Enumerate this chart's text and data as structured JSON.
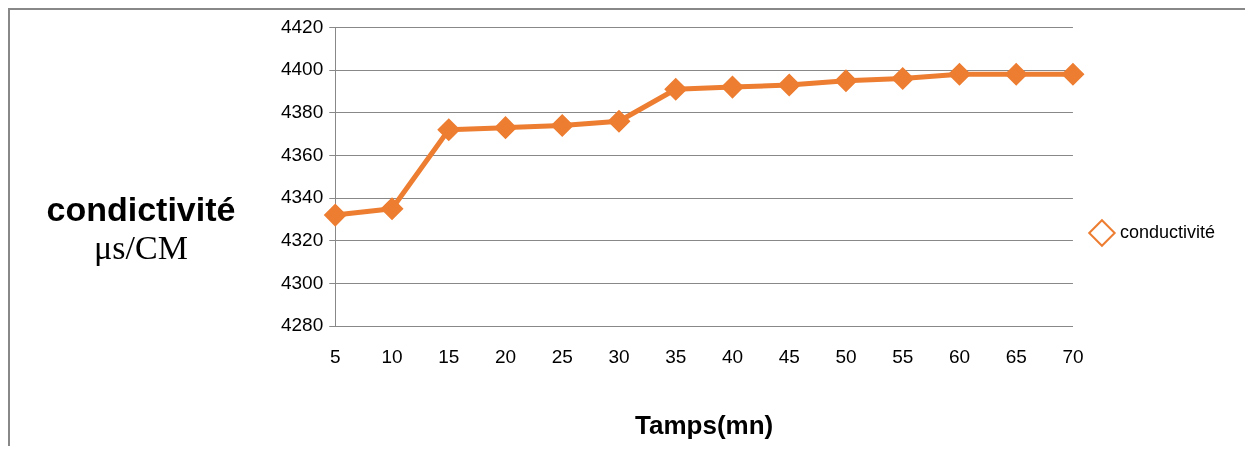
{
  "chart_data": {
    "type": "line",
    "xlabel": "Tamps(mn)",
    "ylabel": "condictivité\nμs/CM",
    "categories": [
      "5",
      "10",
      "15",
      "20",
      "25",
      "30",
      "35",
      "40",
      "45",
      "50",
      "55",
      "60",
      "65",
      "70"
    ],
    "series": [
      {
        "name": "conductivité",
        "color": "#ed7d31",
        "values": [
          4332,
          4335,
          4372,
          4373,
          4374,
          4376,
          4391,
          4392,
          4393,
          4395,
          4396,
          4398,
          4398,
          4398
        ]
      }
    ],
    "ylim": [
      4280,
      4420
    ],
    "yticks": [
      4280,
      4300,
      4320,
      4340,
      4360,
      4380,
      4400,
      4420
    ],
    "grid": "y",
    "legend": "right",
    "marker": "diamond",
    "line_style": "solid"
  }
}
